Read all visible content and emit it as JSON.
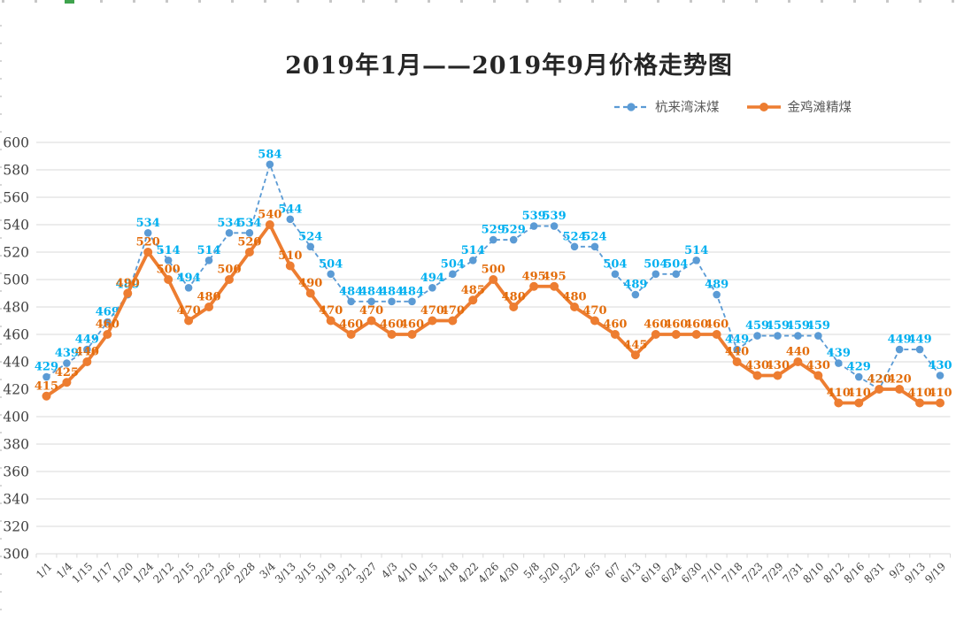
{
  "title": "2019年1月——2019年9月价格走势图",
  "colors": {
    "series1_line": "#5B9BD5",
    "series1_label": "#00B0F0",
    "series2_line": "#ED7D31",
    "series2_label": "#E36C0A",
    "grid": "#D9D9D9",
    "axis_text": "#404040",
    "title_text": "#262626",
    "selection_tick_green": "#3fa34d"
  },
  "chart_data": {
    "type": "line",
    "title": "2019年1月——2019年9月价格走势图",
    "categories": [
      "1/1",
      "1/4",
      "1/15",
      "1/17",
      "1/20",
      "1/24",
      "2/12",
      "2/15",
      "2/23",
      "2/26",
      "2/28",
      "3/4",
      "3/13",
      "3/15",
      "3/19",
      "3/21",
      "3/27",
      "4/3",
      "4/10",
      "4/15",
      "4/18",
      "4/22",
      "4/26",
      "4/30",
      "5/8",
      "5/20",
      "5/22",
      "6/5",
      "6/7",
      "6/13",
      "6/19",
      "6/24",
      "6/30",
      "7/10",
      "7/18",
      "7/23",
      "7/29",
      "7/31",
      "8/10",
      "8/12",
      "8/16",
      "8/31",
      "9/3",
      "9/13",
      "9/19"
    ],
    "series": [
      {
        "name": "杭来湾沫煤",
        "style": "dashed",
        "line_color": "#5B9BD5",
        "label_color": "#00B0F0",
        "values": [
          429,
          439,
          449,
          469,
          489,
          534,
          514,
          494,
          514,
          534,
          534,
          584,
          544,
          524,
          504,
          484,
          484,
          484,
          484,
          494,
          504,
          514,
          529,
          529,
          539,
          539,
          524,
          524,
          504,
          489,
          504,
          504,
          514,
          489,
          449,
          459,
          459,
          459,
          459,
          439,
          429,
          420,
          449,
          449,
          430
        ]
      },
      {
        "name": "金鸡滩精煤",
        "style": "solid",
        "line_color": "#ED7D31",
        "label_color": "#E36C0A",
        "values": [
          415,
          425,
          440,
          460,
          490,
          520,
          500,
          470,
          480,
          500,
          520,
          540,
          510,
          490,
          470,
          460,
          470,
          460,
          460,
          470,
          470,
          485,
          500,
          480,
          495,
          495,
          480,
          470,
          460,
          445,
          460,
          460,
          460,
          460,
          440,
          430,
          430,
          440,
          430,
          410,
          410,
          420,
          420,
          410,
          410
        ]
      }
    ],
    "xlabel": "",
    "ylabel": "",
    "ylim": [
      300,
      600
    ],
    "ytick_step": 20,
    "yticks": [
      300,
      320,
      340,
      360,
      380,
      400,
      420,
      440,
      460,
      480,
      500,
      520,
      540,
      560,
      580,
      600
    ],
    "grid": true,
    "data_labels": true,
    "legend_position": "top-right"
  }
}
